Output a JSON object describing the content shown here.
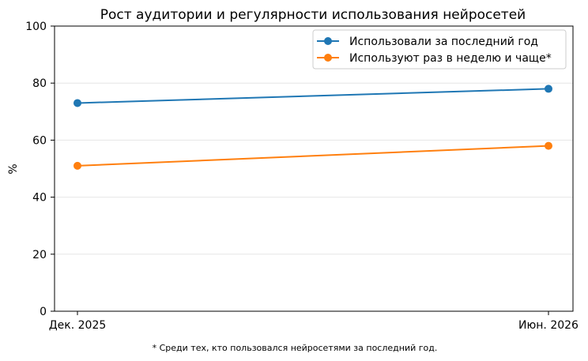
{
  "chart_data": {
    "type": "line",
    "title": "Рост аудитории и регулярности использования нейросетей",
    "xlabel": "",
    "ylabel": "%",
    "categories": [
      "Дек. 2025",
      "Июн. 2026"
    ],
    "ylim": [
      0,
      100
    ],
    "yticks": [
      0,
      20,
      40,
      60,
      80,
      100
    ],
    "grid": "horizontal",
    "legend_position": "top-right",
    "series": [
      {
        "name": "Использовали за последний год",
        "values": [
          73,
          78
        ],
        "color": "#1f77b4"
      },
      {
        "name": "Используют раз в неделю и чаще*",
        "values": [
          51,
          58
        ],
        "color": "#ff7f0e"
      }
    ],
    "footnote": "* Среди тех, кто пользовался нейросетями за последний год."
  }
}
